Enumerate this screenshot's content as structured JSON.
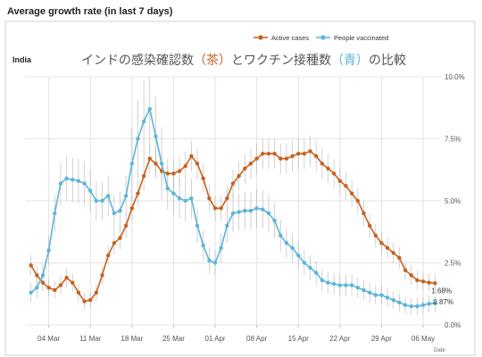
{
  "header": {
    "title": "Average growth rate (in last 7 days)"
  },
  "colors": {
    "active": "#c8611f",
    "vaccinated": "#5bb5d9",
    "grid": "#e3e3e3",
    "err": "#aaaaaa"
  },
  "chart_data": {
    "type": "line",
    "title": "インドの感染確認数（茶）とワクチン接種数（青）の比較",
    "title_parts": [
      "インドの感染確認数",
      "（茶）",
      "とワクチン接種数",
      "（青）",
      "の比較"
    ],
    "country": "India",
    "xlabel": "Date",
    "ylabel": "",
    "x_tick_labels": [
      "04 Mar",
      "11 Mar",
      "18 Mar",
      "25 Mar",
      "01 Apr",
      "08 Apr",
      "15 Apr",
      "22 Apr",
      "29 Apr",
      "06 May"
    ],
    "x_tick_days": [
      3,
      10,
      17,
      24,
      31,
      38,
      45,
      52,
      59,
      66
    ],
    "y_tick_labels": [
      "0.0%",
      "2.5%",
      "5.0%",
      "7.5%",
      "10.0%"
    ],
    "y_tick_values": [
      0,
      2.5,
      5,
      7.5,
      10
    ],
    "ylim": [
      0,
      10
    ],
    "xlim": [
      -1,
      69
    ],
    "legend": {
      "position": "top-right",
      "entries": [
        "Active cases",
        "People vaccinated"
      ]
    },
    "grid": true,
    "series": [
      {
        "name": "Active cases",
        "x": [
          0,
          1,
          2,
          3,
          4,
          5,
          6,
          7,
          8,
          9,
          10,
          11,
          12,
          13,
          14,
          15,
          16,
          17,
          18,
          19,
          20,
          21,
          22,
          23,
          24,
          25,
          26,
          27,
          28,
          29,
          30,
          31,
          32,
          33,
          34,
          35,
          36,
          37,
          38,
          39,
          40,
          41,
          42,
          43,
          44,
          45,
          46,
          47,
          48,
          49,
          50,
          51,
          52,
          53,
          54,
          55,
          56,
          57,
          58,
          59,
          60,
          61,
          62,
          63,
          64,
          65,
          66,
          67,
          68
        ],
        "values": [
          2.4,
          2.0,
          1.7,
          1.5,
          1.4,
          1.6,
          1.9,
          1.7,
          1.3,
          0.95,
          1.0,
          1.3,
          2.0,
          2.8,
          3.3,
          3.5,
          4.0,
          4.7,
          5.3,
          6.0,
          6.7,
          6.5,
          6.2,
          6.1,
          6.1,
          6.2,
          6.4,
          6.8,
          6.5,
          5.9,
          5.1,
          4.7,
          4.7,
          5.1,
          5.7,
          6.0,
          6.3,
          6.5,
          6.7,
          6.9,
          6.9,
          6.9,
          6.7,
          6.7,
          6.8,
          6.9,
          6.9,
          7.0,
          6.8,
          6.5,
          6.3,
          6.1,
          5.8,
          5.6,
          5.3,
          5.0,
          4.5,
          4.0,
          3.6,
          3.3,
          3.1,
          2.9,
          2.7,
          2.2,
          2.0,
          1.8,
          1.75,
          1.7,
          1.68
        ],
        "end_label": "1.68%"
      },
      {
        "name": "People vaccinated",
        "x": [
          0,
          1,
          2,
          3,
          4,
          5,
          6,
          7,
          8,
          9,
          10,
          11,
          12,
          13,
          14,
          15,
          16,
          17,
          18,
          19,
          20,
          21,
          22,
          23,
          24,
          25,
          26,
          27,
          28,
          29,
          30,
          31,
          32,
          33,
          34,
          35,
          36,
          37,
          38,
          39,
          40,
          41,
          42,
          43,
          44,
          45,
          46,
          47,
          48,
          49,
          50,
          51,
          52,
          53,
          54,
          55,
          56,
          57,
          58,
          59,
          60,
          61,
          62,
          63,
          64,
          65,
          66,
          67,
          68
        ],
        "values": [
          1.3,
          1.5,
          2.0,
          3.0,
          4.5,
          5.7,
          5.9,
          5.85,
          5.8,
          5.7,
          5.4,
          5.0,
          5.0,
          5.2,
          4.5,
          4.6,
          5.2,
          6.5,
          7.5,
          8.2,
          8.7,
          7.6,
          6.5,
          5.5,
          5.3,
          5.1,
          5.0,
          5.1,
          4.0,
          3.2,
          2.6,
          2.5,
          3.1,
          4.0,
          4.5,
          4.55,
          4.6,
          4.6,
          4.7,
          4.65,
          4.5,
          4.2,
          3.6,
          3.3,
          3.1,
          2.8,
          2.5,
          2.3,
          2.1,
          1.8,
          1.7,
          1.65,
          1.6,
          1.6,
          1.6,
          1.5,
          1.4,
          1.3,
          1.2,
          1.2,
          1.1,
          1.0,
          0.9,
          0.8,
          0.75,
          0.75,
          0.8,
          0.85,
          0.87
        ],
        "end_label": "0.87%"
      }
    ]
  }
}
